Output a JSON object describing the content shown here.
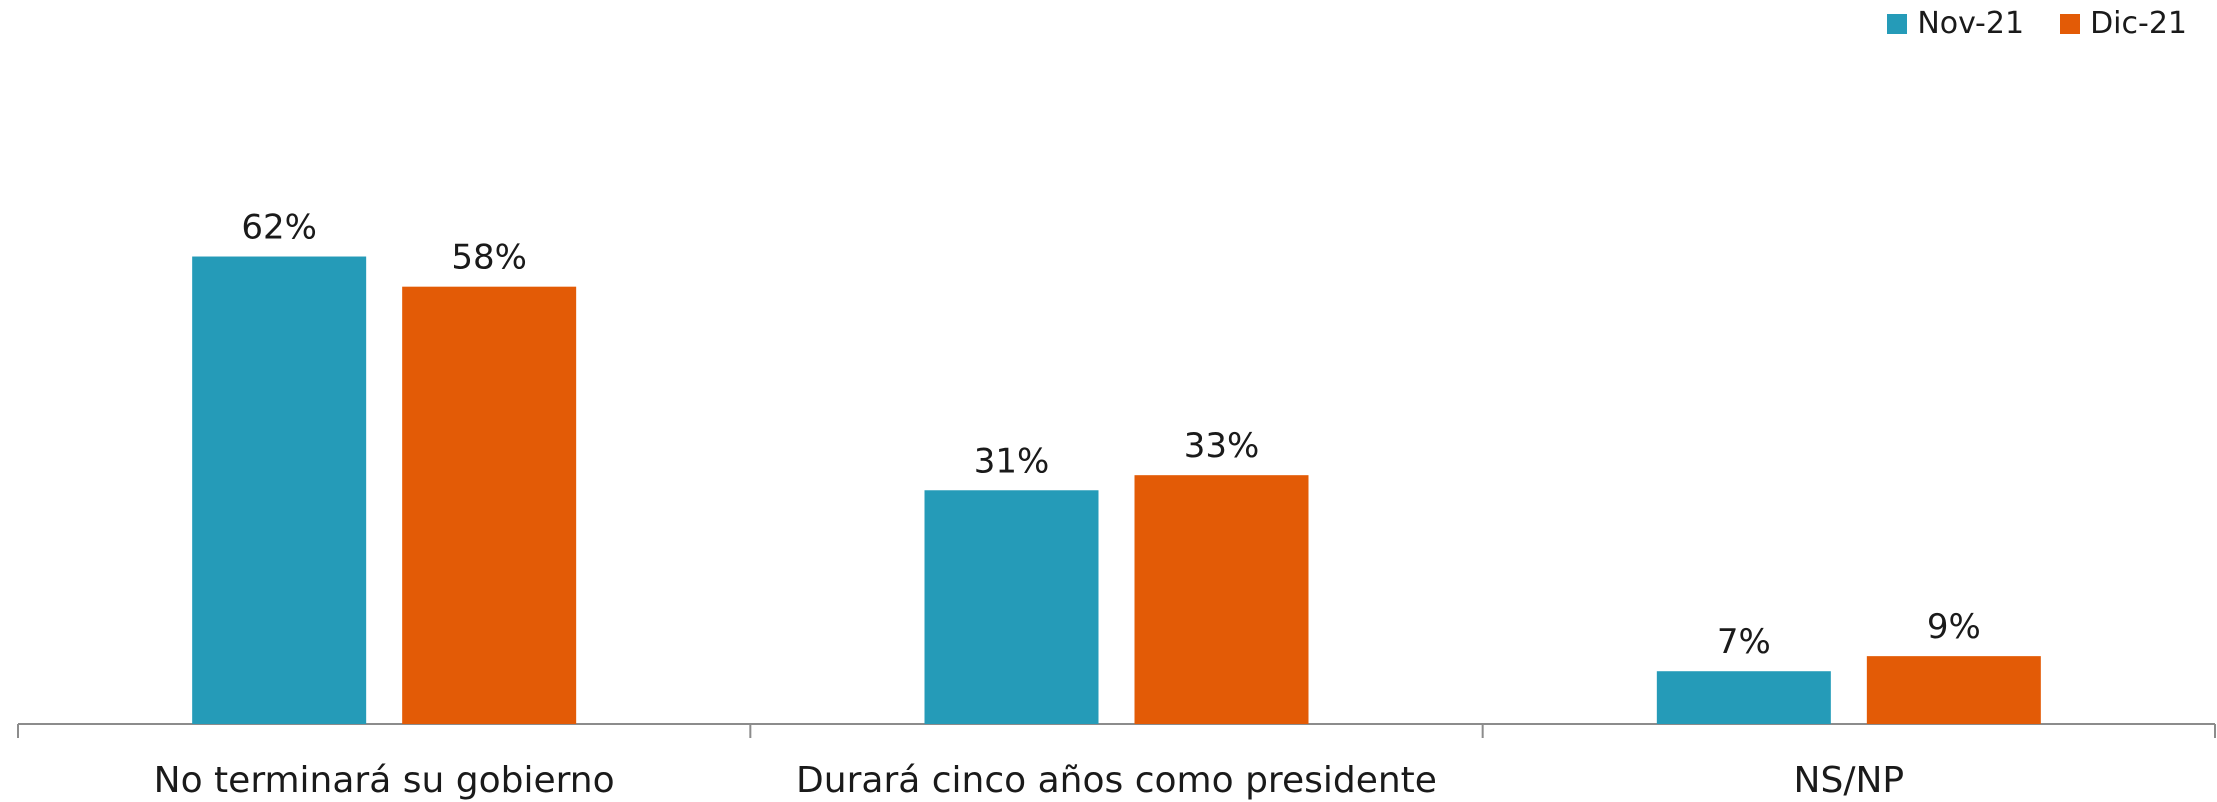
{
  "chart_data": {
    "type": "bar",
    "title": "",
    "xlabel": "",
    "ylabel": "",
    "categories": [
      "No terminará su gobierno",
      "Durará cinco años como presidente",
      "NS/NP"
    ],
    "series": [
      {
        "name": "Nov-21",
        "color": "#259bb8",
        "values": [
          62,
          31,
          7
        ],
        "labels": [
          "62%",
          "31%",
          "7%"
        ]
      },
      {
        "name": "Dic-21",
        "color": "#e35b06",
        "values": [
          58,
          33,
          9
        ],
        "labels": [
          "58%",
          "33%",
          "9%"
        ]
      }
    ],
    "ylim": [
      0,
      70
    ],
    "grid": false,
    "legend_position": "top-right"
  }
}
